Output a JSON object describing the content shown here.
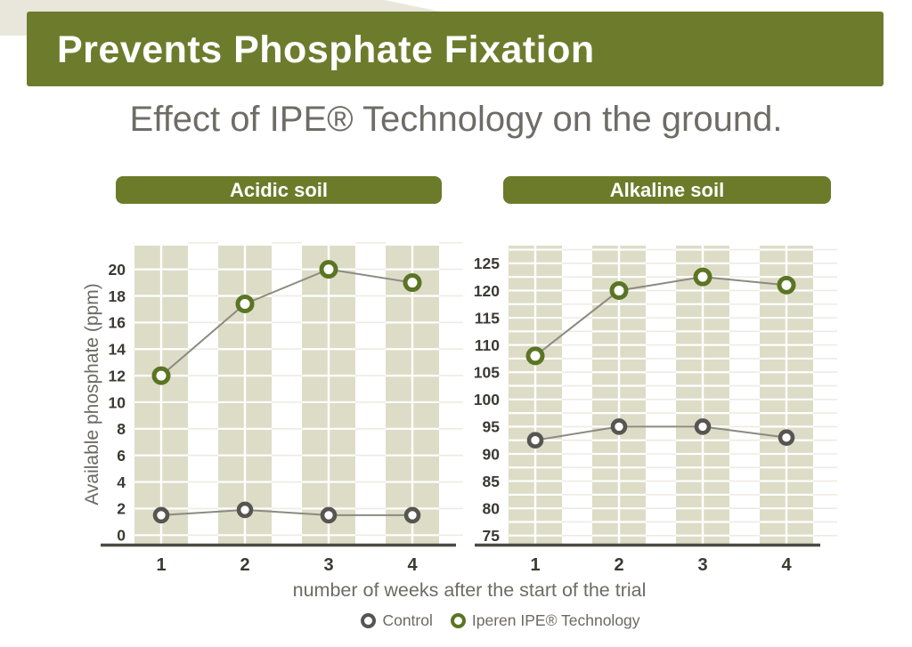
{
  "banner": {
    "title": "Prevents Phosphate Fixation"
  },
  "subtitle": "Effect of IPE® Technology on the ground.",
  "xaxis": {
    "label": "number of weeks after the start of the trial",
    "ticks": [
      "1",
      "2",
      "3",
      "4"
    ]
  },
  "legend": [
    {
      "label": "Control",
      "color": "#575550"
    },
    {
      "label": "Iperen IPE® Technology",
      "color": "#5a7523"
    }
  ],
  "colors": {
    "banner_green": "#6d7b2c",
    "pill_green": "#6b7b2a",
    "band_beige": "#e9e7dc",
    "stripe_beige": "#dddcc7",
    "grid_faint": "#edebe3",
    "axis": "#4c4a43",
    "tick_text": "#3b3933",
    "line_gray": "#8c8a80",
    "control_marker": "#575550",
    "ipe_marker": "#5a7523"
  },
  "chart_data": [
    {
      "type": "line",
      "title": "Acidic soil",
      "ylabel": "Available phosphate (ppm)",
      "x": [
        1,
        2,
        3,
        4
      ],
      "yticks": [
        0,
        2,
        4,
        6,
        8,
        10,
        12,
        14,
        16,
        18,
        20
      ],
      "ylim": [
        -0.85,
        22.05
      ],
      "minor_step": 2,
      "grid": true,
      "legend_position": "bottom",
      "series": [
        {
          "name": "Control",
          "color": "#575550",
          "values": [
            1.5,
            1.9,
            1.5,
            1.5
          ]
        },
        {
          "name": "Iperen IPE® Technology",
          "color": "#5a7523",
          "marker": "large",
          "values": [
            12,
            17.4,
            20,
            19
          ]
        }
      ]
    },
    {
      "type": "line",
      "title": "Alkaline soil",
      "ylabel": "",
      "x": [
        1,
        2,
        3,
        4
      ],
      "yticks": [
        75,
        80,
        85,
        90,
        95,
        100,
        105,
        110,
        115,
        120,
        125
      ],
      "ylim": [
        73.0,
        128.9
      ],
      "minor_step": 2.5,
      "grid": true,
      "legend_position": "bottom",
      "series": [
        {
          "name": "Control",
          "color": "#575550",
          "values": [
            92.5,
            95,
            95,
            93
          ]
        },
        {
          "name": "Iperen IPE® Technology",
          "color": "#5a7523",
          "marker": "large",
          "values": [
            108,
            120,
            122.5,
            121
          ]
        }
      ]
    }
  ]
}
